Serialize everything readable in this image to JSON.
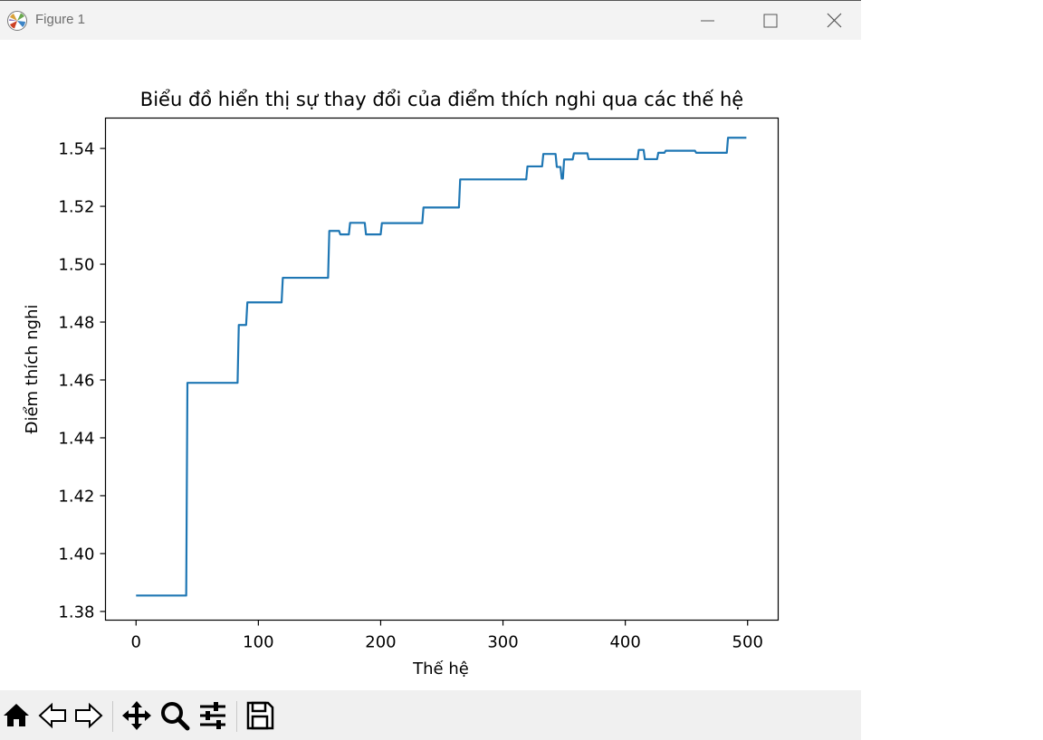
{
  "window": {
    "title": "Figure 1",
    "controls": {
      "minimize": "minimize-icon",
      "maximize": "maximize-icon",
      "close": "close-icon"
    }
  },
  "toolbar": {
    "tools": [
      "home-icon",
      "back-icon",
      "forward-icon",
      "pan-icon",
      "zoom-icon",
      "configure-subplots-icon",
      "save-icon"
    ]
  },
  "chart_data": {
    "type": "line",
    "title": "Biểu đồ hiển thị sự thay đổi của điểm thích nghi qua các thế hệ",
    "xlabel": "Thế hệ",
    "ylabel": "Điểm thích nghi",
    "xlim": [
      -25,
      525
    ],
    "ylim": [
      1.377,
      1.5505
    ],
    "xticks": [
      0,
      100,
      200,
      300,
      400,
      500
    ],
    "xtick_labels": [
      "0",
      "100",
      "200",
      "300",
      "400",
      "500"
    ],
    "yticks": [
      1.38,
      1.4,
      1.42,
      1.44,
      1.46,
      1.48,
      1.5,
      1.52,
      1.54
    ],
    "ytick_labels": [
      "1.38",
      "1.40",
      "1.42",
      "1.44",
      "1.46",
      "1.48",
      "1.50",
      "1.52",
      "1.54"
    ],
    "grid": false,
    "line_color": "#1f77b4",
    "series": [
      {
        "x": [
          0,
          41,
          42,
          83,
          84,
          90,
          91,
          119,
          120,
          157,
          158,
          166,
          167,
          174,
          175,
          187,
          188,
          200,
          201,
          234,
          235,
          264,
          265,
          319,
          320,
          332,
          333,
          343,
          344,
          347,
          348,
          349,
          350,
          357,
          358,
          369,
          370,
          410,
          411,
          415,
          416,
          426,
          427,
          432,
          433,
          457,
          458,
          483,
          484,
          499
        ],
        "y": [
          1.3855,
          1.3855,
          1.459,
          1.459,
          1.479,
          1.479,
          1.4868,
          1.4868,
          1.4953,
          1.4953,
          1.5115,
          1.5115,
          1.5103,
          1.5103,
          1.5143,
          1.5143,
          1.5103,
          1.5103,
          1.5142,
          1.5142,
          1.5196,
          1.5196,
          1.5293,
          1.5293,
          1.5338,
          1.5338,
          1.5381,
          1.5381,
          1.5336,
          1.5336,
          1.5296,
          1.5296,
          1.5362,
          1.5362,
          1.5383,
          1.5383,
          1.5363,
          1.5363,
          1.5395,
          1.5395,
          1.5363,
          1.5363,
          1.5385,
          1.5385,
          1.5392,
          1.5392,
          1.5385,
          1.5385,
          1.5437,
          1.5437
        ]
      }
    ]
  }
}
